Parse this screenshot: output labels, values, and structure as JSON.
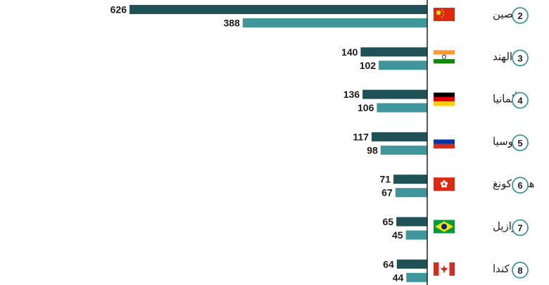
{
  "chart_data": {
    "type": "bar",
    "orientation": "horizontal",
    "categories": [
      {
        "rank": "2",
        "name": "الصين",
        "flag": "china-flag-icon"
      },
      {
        "rank": "3",
        "name": "الهند",
        "flag": "india-flag-icon"
      },
      {
        "rank": "4",
        "name": "ألمانيا",
        "flag": "germany-flag-icon"
      },
      {
        "rank": "5",
        "name": "روسيا",
        "flag": "russia-flag-icon"
      },
      {
        "rank": "6",
        "name": "هونغ كونغ",
        "flag": "hong-kong-flag-icon"
      },
      {
        "rank": "7",
        "name": "البرازيل",
        "flag": "brazil-flag-icon"
      },
      {
        "rank": "8",
        "name": "كندا",
        "flag": "canada-flag-icon"
      }
    ],
    "series": [
      {
        "values": [
          626,
          140,
          136,
          117,
          71,
          65,
          64
        ],
        "color": "#1e5256"
      },
      {
        "values": [
          388,
          102,
          106,
          98,
          67,
          45,
          44
        ],
        "color": "#3f979c"
      }
    ],
    "xlim": [
      0,
      700
    ],
    "grid": false,
    "legend": "none"
  },
  "colors": {
    "axis": "#1e1e1e",
    "rank_ring": "#3f979c"
  }
}
